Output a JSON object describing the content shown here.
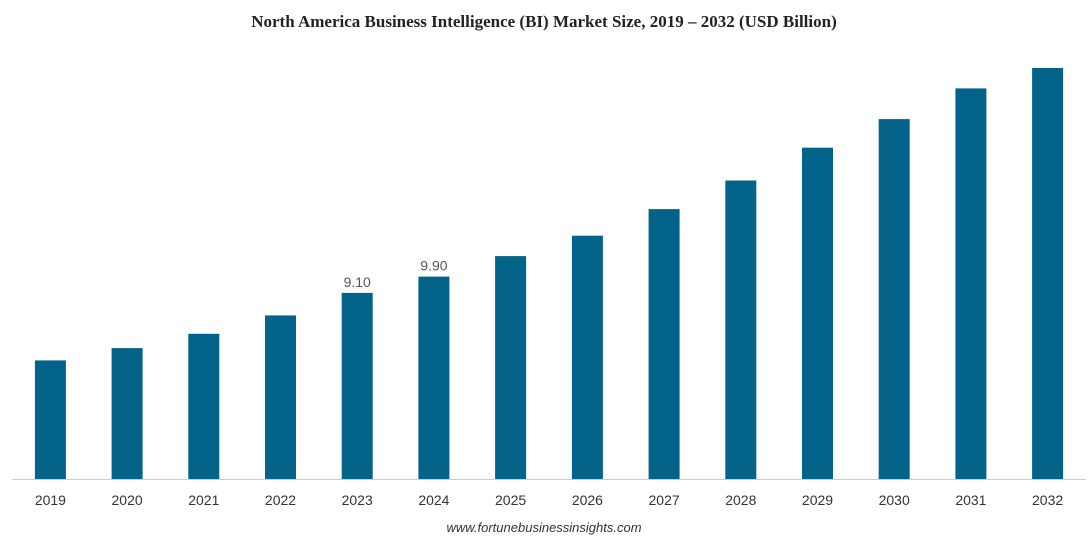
{
  "chart_data": {
    "type": "bar",
    "title": "North America Business Intelligence (BI) Market Size, 2019 – 2032 (USD Billion)",
    "source": "www.fortunebusinessinsights.com",
    "xlabel": "",
    "ylabel": "",
    "categories": [
      "2019",
      "2020",
      "2021",
      "2022",
      "2023",
      "2024",
      "2025",
      "2026",
      "2027",
      "2028",
      "2029",
      "2030",
      "2031",
      "2032"
    ],
    "values": [
      5.8,
      6.4,
      7.1,
      8.0,
      9.1,
      9.9,
      10.9,
      11.9,
      13.2,
      14.6,
      16.2,
      17.6,
      19.1,
      20.1
    ],
    "data_labels": [
      "",
      "",
      "",
      "",
      "9.10",
      "9.90",
      "",
      "",
      "",
      "",
      "",
      "",
      "",
      ""
    ],
    "ylim": [
      0,
      20.1
    ],
    "grid": false,
    "legend": "none",
    "bar_color": "#036388",
    "axis_color": "#cccccc"
  }
}
